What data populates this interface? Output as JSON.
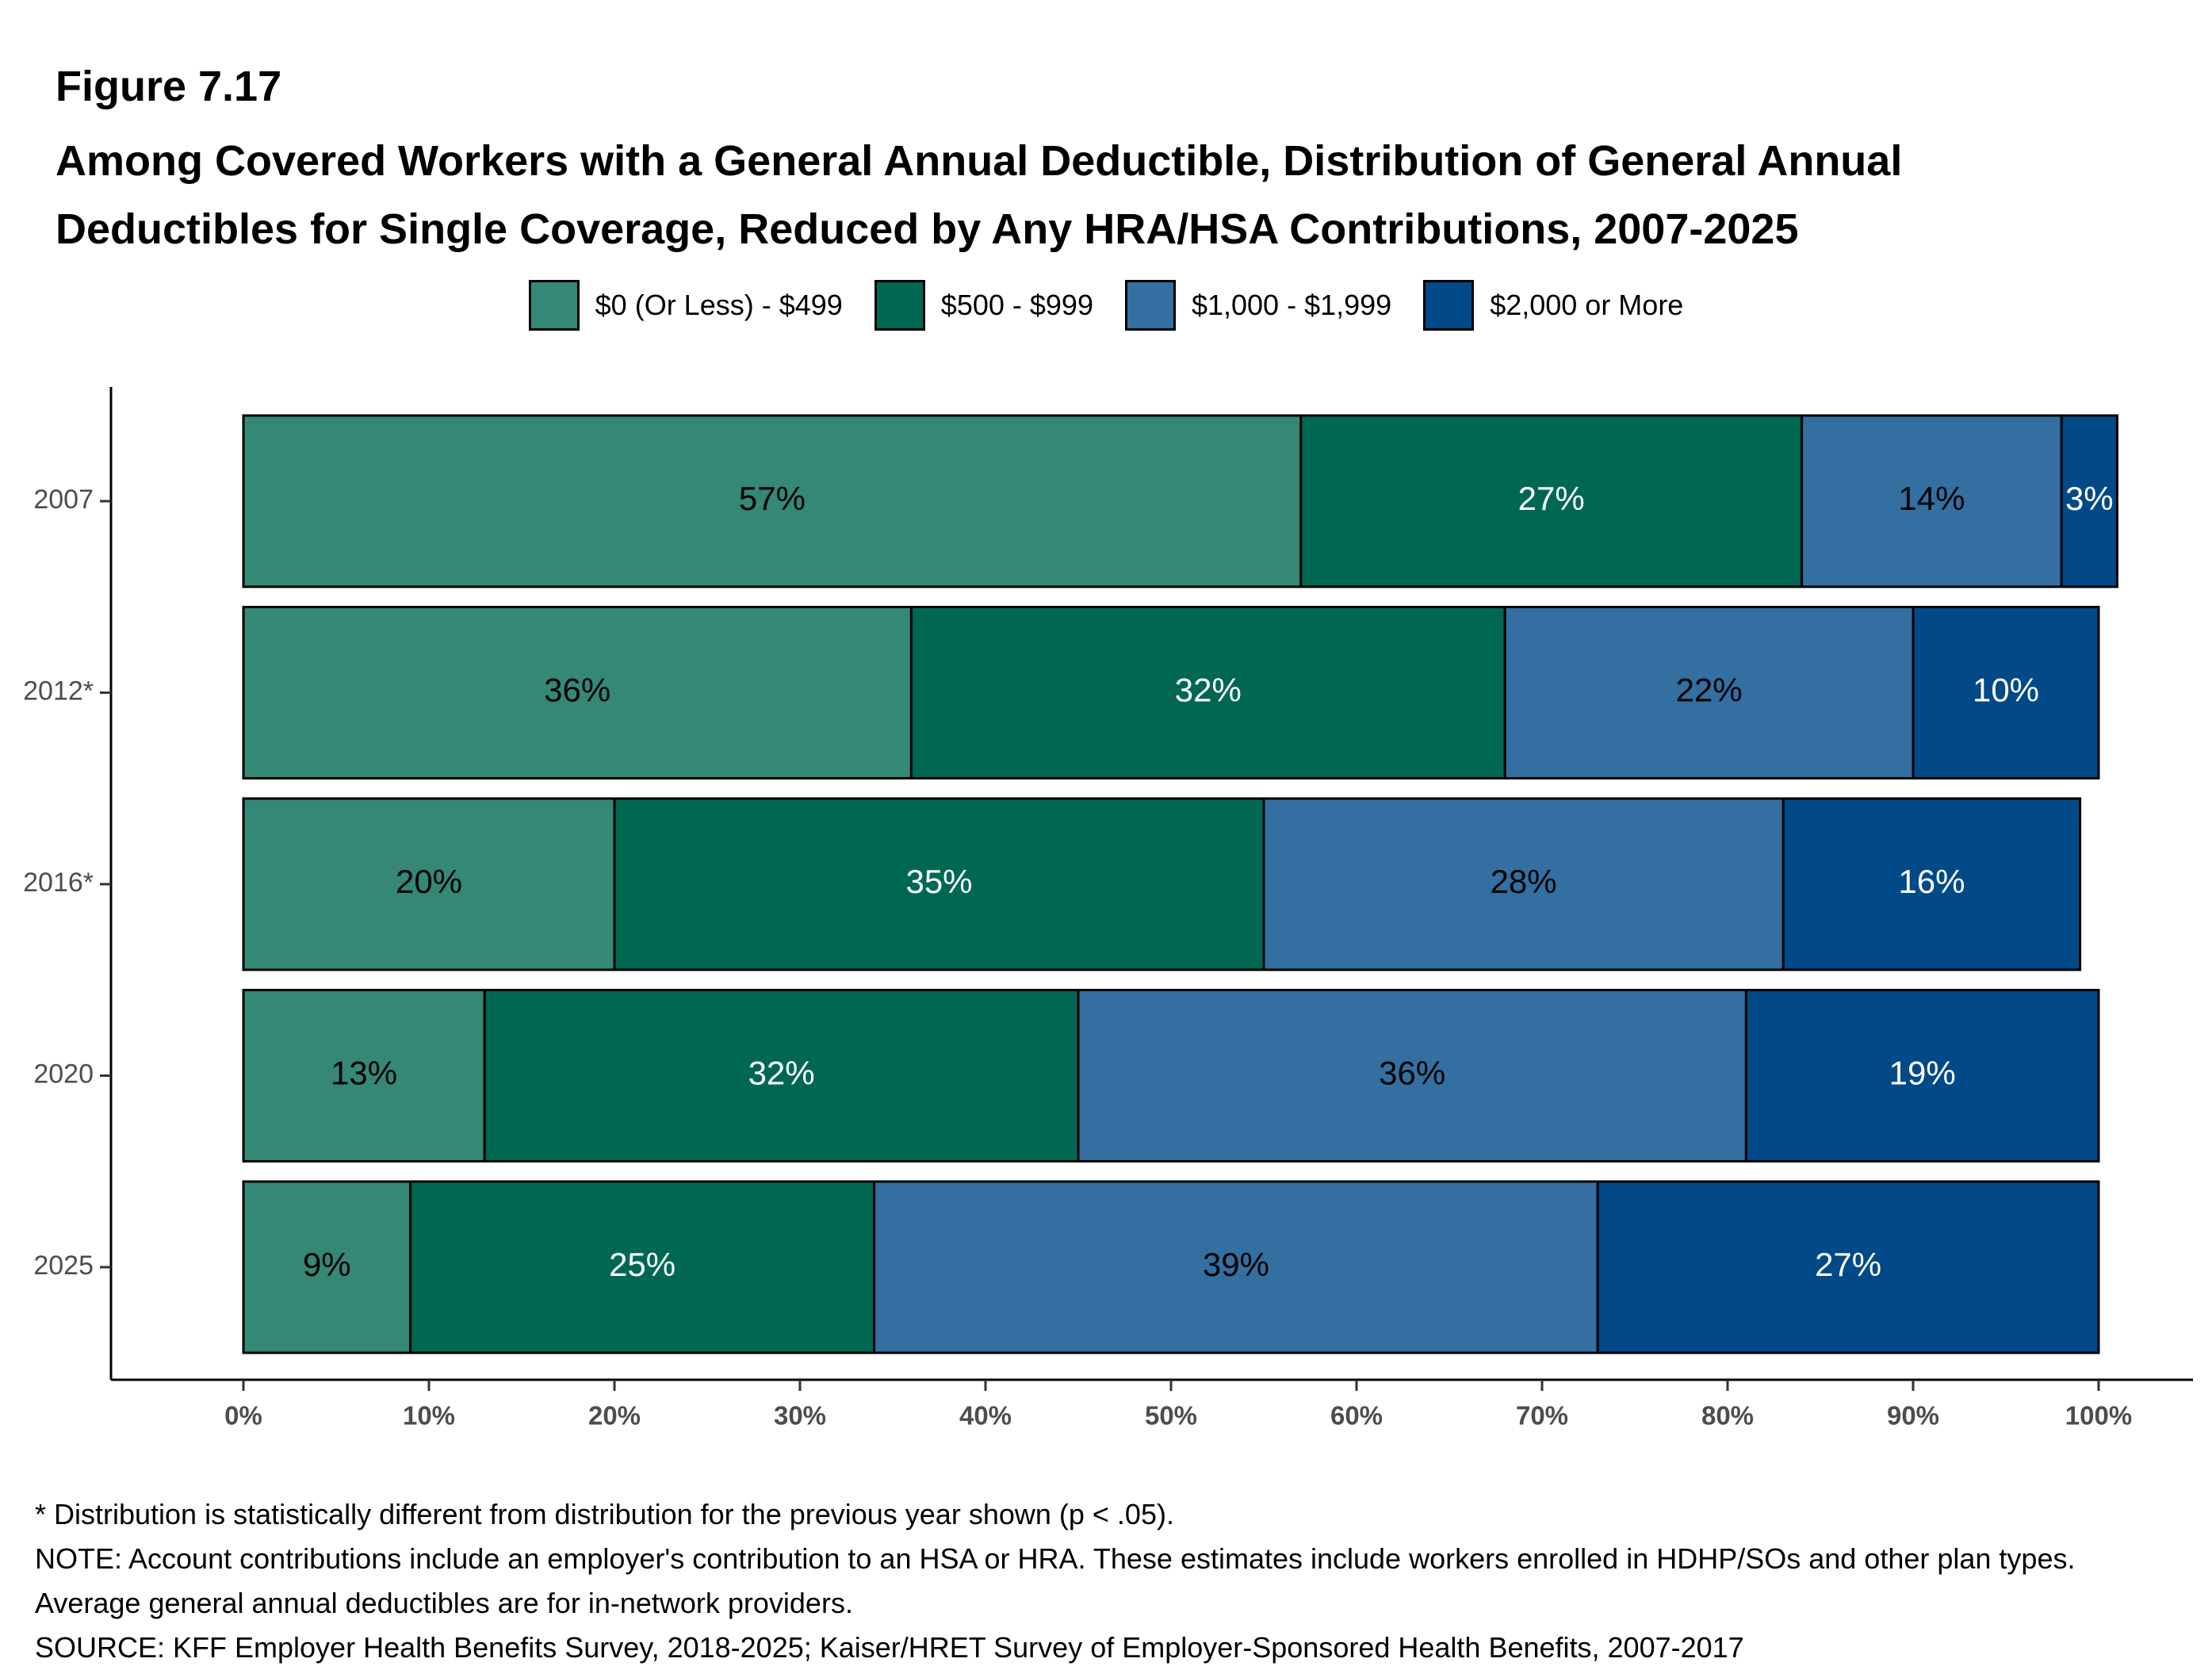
{
  "figure": {
    "label": "Figure 7.17",
    "title": "Among Covered Workers with a General Annual Deductible, Distribution of General Annual Deductibles for Single Coverage, Reduced by Any HRA/HSA Contributions, 2007-2025"
  },
  "chart_data": {
    "type": "bar",
    "orientation": "horizontal",
    "stacked": true,
    "categories": [
      "2007",
      "2012*",
      "2016*",
      "2020",
      "2025"
    ],
    "series": [
      {
        "name": "$0 (Or Less) - $499",
        "color": "#358776",
        "label_color": "#000000",
        "values": [
          57,
          36,
          20,
          13,
          9
        ]
      },
      {
        "name": "$500 - $999",
        "color": "#006852",
        "label_color": "#ffffff",
        "values": [
          27,
          32,
          35,
          32,
          25
        ]
      },
      {
        "name": "$1,000 - $1,999",
        "color": "#336FA0",
        "label_color": "#000000",
        "values": [
          14,
          22,
          28,
          36,
          39
        ]
      },
      {
        "name": "$2,000 or More",
        "color": "#024988",
        "label_color": "#ffffff",
        "values": [
          3,
          10,
          16,
          19,
          27
        ]
      }
    ],
    "x_ticks": [
      "0%",
      "10%",
      "20%",
      "30%",
      "40%",
      "50%",
      "60%",
      "70%",
      "80%",
      "90%",
      "100%"
    ],
    "xlim": [
      0,
      100
    ],
    "legend_position": "top",
    "grid": false
  },
  "notes": [
    "* Distribution is statistically different from distribution for the previous year shown (p < .05).",
    "NOTE: Account contributions include an employer's contribution to an HSA or HRA. These estimates include workers enrolled in HDHP/SOs and other plan types. Average general annual deductibles are for in-network providers.",
    "SOURCE: KFF Employer Health Benefits Survey, 2018-2025; Kaiser/HRET Survey of Employer-Sponsored Health Benefits, 2007-2017"
  ]
}
